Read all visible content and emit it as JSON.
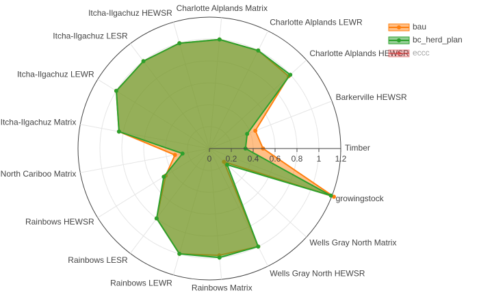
{
  "chart_data": {
    "type": "radar",
    "categories": [
      "Timber",
      "Barkerville HEWSR",
      "Charlotte Alplands HEWSR",
      "Charlotte Alplands LEWR",
      "Charlotte Alplands Matrix",
      "Itcha-Ilgachuz HEWSR",
      "Itcha-Ilgachuz LESR",
      "Itcha-Ilgachuz LEWR",
      "Itcha-Ilgachuz Matrix",
      "North Cariboo Matrix",
      "Rainbows HEWSR",
      "Rainbows LESR",
      "Rainbows LEWR",
      "Rainbows Matrix",
      "Wells Gray North HEWSR",
      "Wells Gray North Matrix",
      "growingstock"
    ],
    "series": [
      {
        "name": "bau",
        "color": "#ff7f0e",
        "values": [
          0.49,
          0.45,
          0.98,
          1.0,
          1.0,
          1.0,
          1.0,
          1.0,
          0.84,
          0.32,
          0.47,
          0.8,
          1.0,
          0.98,
          1.0,
          0.18,
          1.22
        ]
      },
      {
        "name": "bc_herd_plan",
        "color": "#2ca02c",
        "values": [
          0.33,
          0.37,
          1.0,
          1.0,
          1.0,
          1.0,
          1.0,
          1.0,
          0.84,
          0.25,
          0.49,
          0.8,
          1.0,
          1.0,
          1.0,
          0.22,
          1.19
        ]
      },
      {
        "name": "eccc",
        "color": "#d62728",
        "visible": "legendonly"
      }
    ],
    "rlim": [
      0,
      1.2
    ],
    "rticks": [
      0,
      0.2,
      0.4,
      0.6,
      0.8,
      1,
      1.2
    ],
    "grid": true,
    "legend": "top-right"
  }
}
